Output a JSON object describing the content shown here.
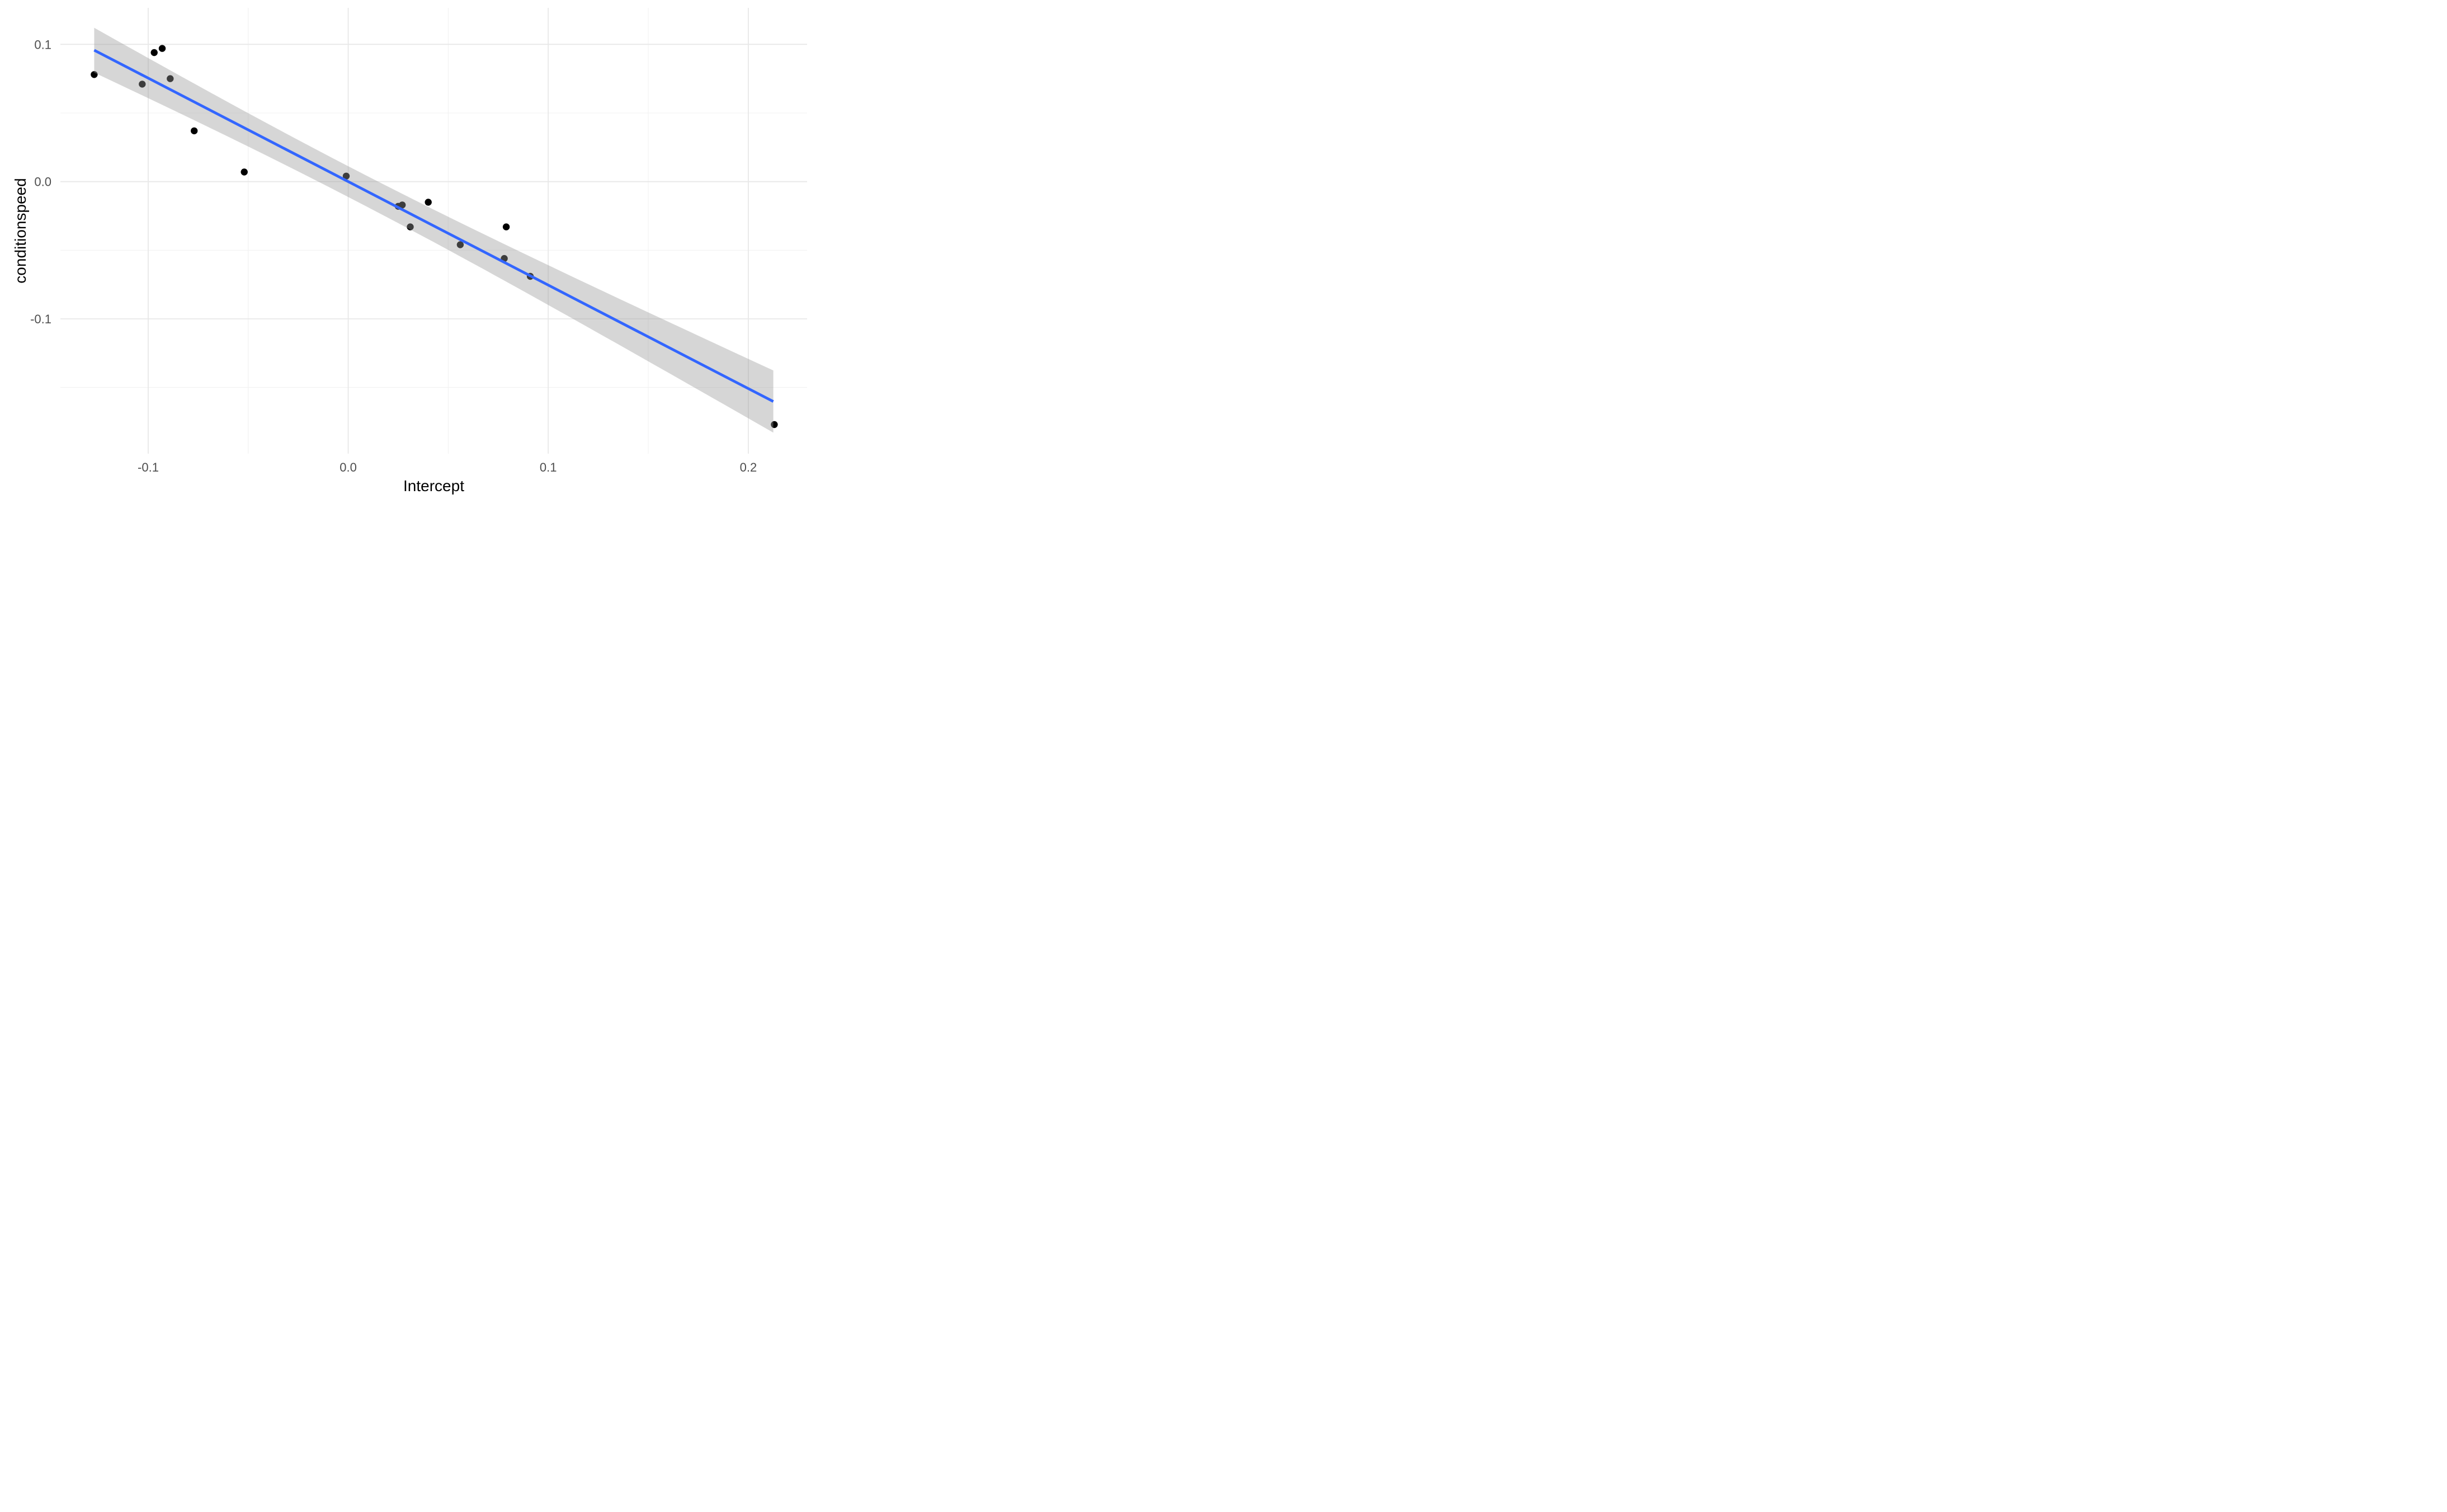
{
  "figure": {
    "background": "#FFFFFF"
  },
  "chart_data": {
    "type": "scatter",
    "title": "",
    "xlabel": "Intercept",
    "ylabel": "conditionspeed",
    "xlim": [
      -0.1439,
      0.2294
    ],
    "ylim": [
      -0.1982,
      0.1266
    ],
    "x_ticks": {
      "values": [
        -0.1,
        0.0,
        0.1,
        0.2
      ],
      "labels": [
        "-0.1",
        "0.0",
        "0.1",
        "0.2"
      ]
    },
    "y_ticks": {
      "values": [
        0.1,
        0.0,
        -0.1
      ],
      "labels": [
        "0.1",
        "0.0",
        "-0.1"
      ]
    },
    "x_minor_ticks": [
      -0.05,
      0.05,
      0.15
    ],
    "y_minor_ticks": [
      0.05,
      -0.05,
      -0.15
    ],
    "grid": "major+minor",
    "legend": "none",
    "points": [
      [
        -0.127,
        0.078
      ],
      [
        -0.103,
        0.071
      ],
      [
        -0.097,
        0.094
      ],
      [
        -0.093,
        0.097
      ],
      [
        -0.089,
        0.075
      ],
      [
        -0.077,
        0.037
      ],
      [
        -0.052,
        0.007
      ],
      [
        -0.001,
        0.004
      ],
      [
        0.025,
        -0.018
      ],
      [
        0.027,
        -0.017
      ],
      [
        0.031,
        -0.033
      ],
      [
        0.04,
        -0.015
      ],
      [
        0.056,
        -0.046
      ],
      [
        0.078,
        -0.056
      ],
      [
        0.079,
        -0.033
      ],
      [
        0.091,
        -0.069
      ],
      [
        0.213,
        -0.177
      ]
    ],
    "trend_line": {
      "type": "linear",
      "slope": -0.754,
      "intercept": 0.0,
      "x_start": -0.127,
      "x_end": 0.2125,
      "ci_band": {
        "x_mean": 0.001,
        "half_width_min": 0.0112,
        "spread_factor": 0.093
      }
    },
    "colors": {
      "point": "#000000",
      "trend_line": "#3366FF",
      "ci_band_fill": "#999999",
      "ci_band_opacity": 0.4,
      "grid_major": "#E8E8E8",
      "grid_minor": "#F1F1F1",
      "tick_label": "#4D4D4D",
      "axis_title": "#000000"
    }
  }
}
